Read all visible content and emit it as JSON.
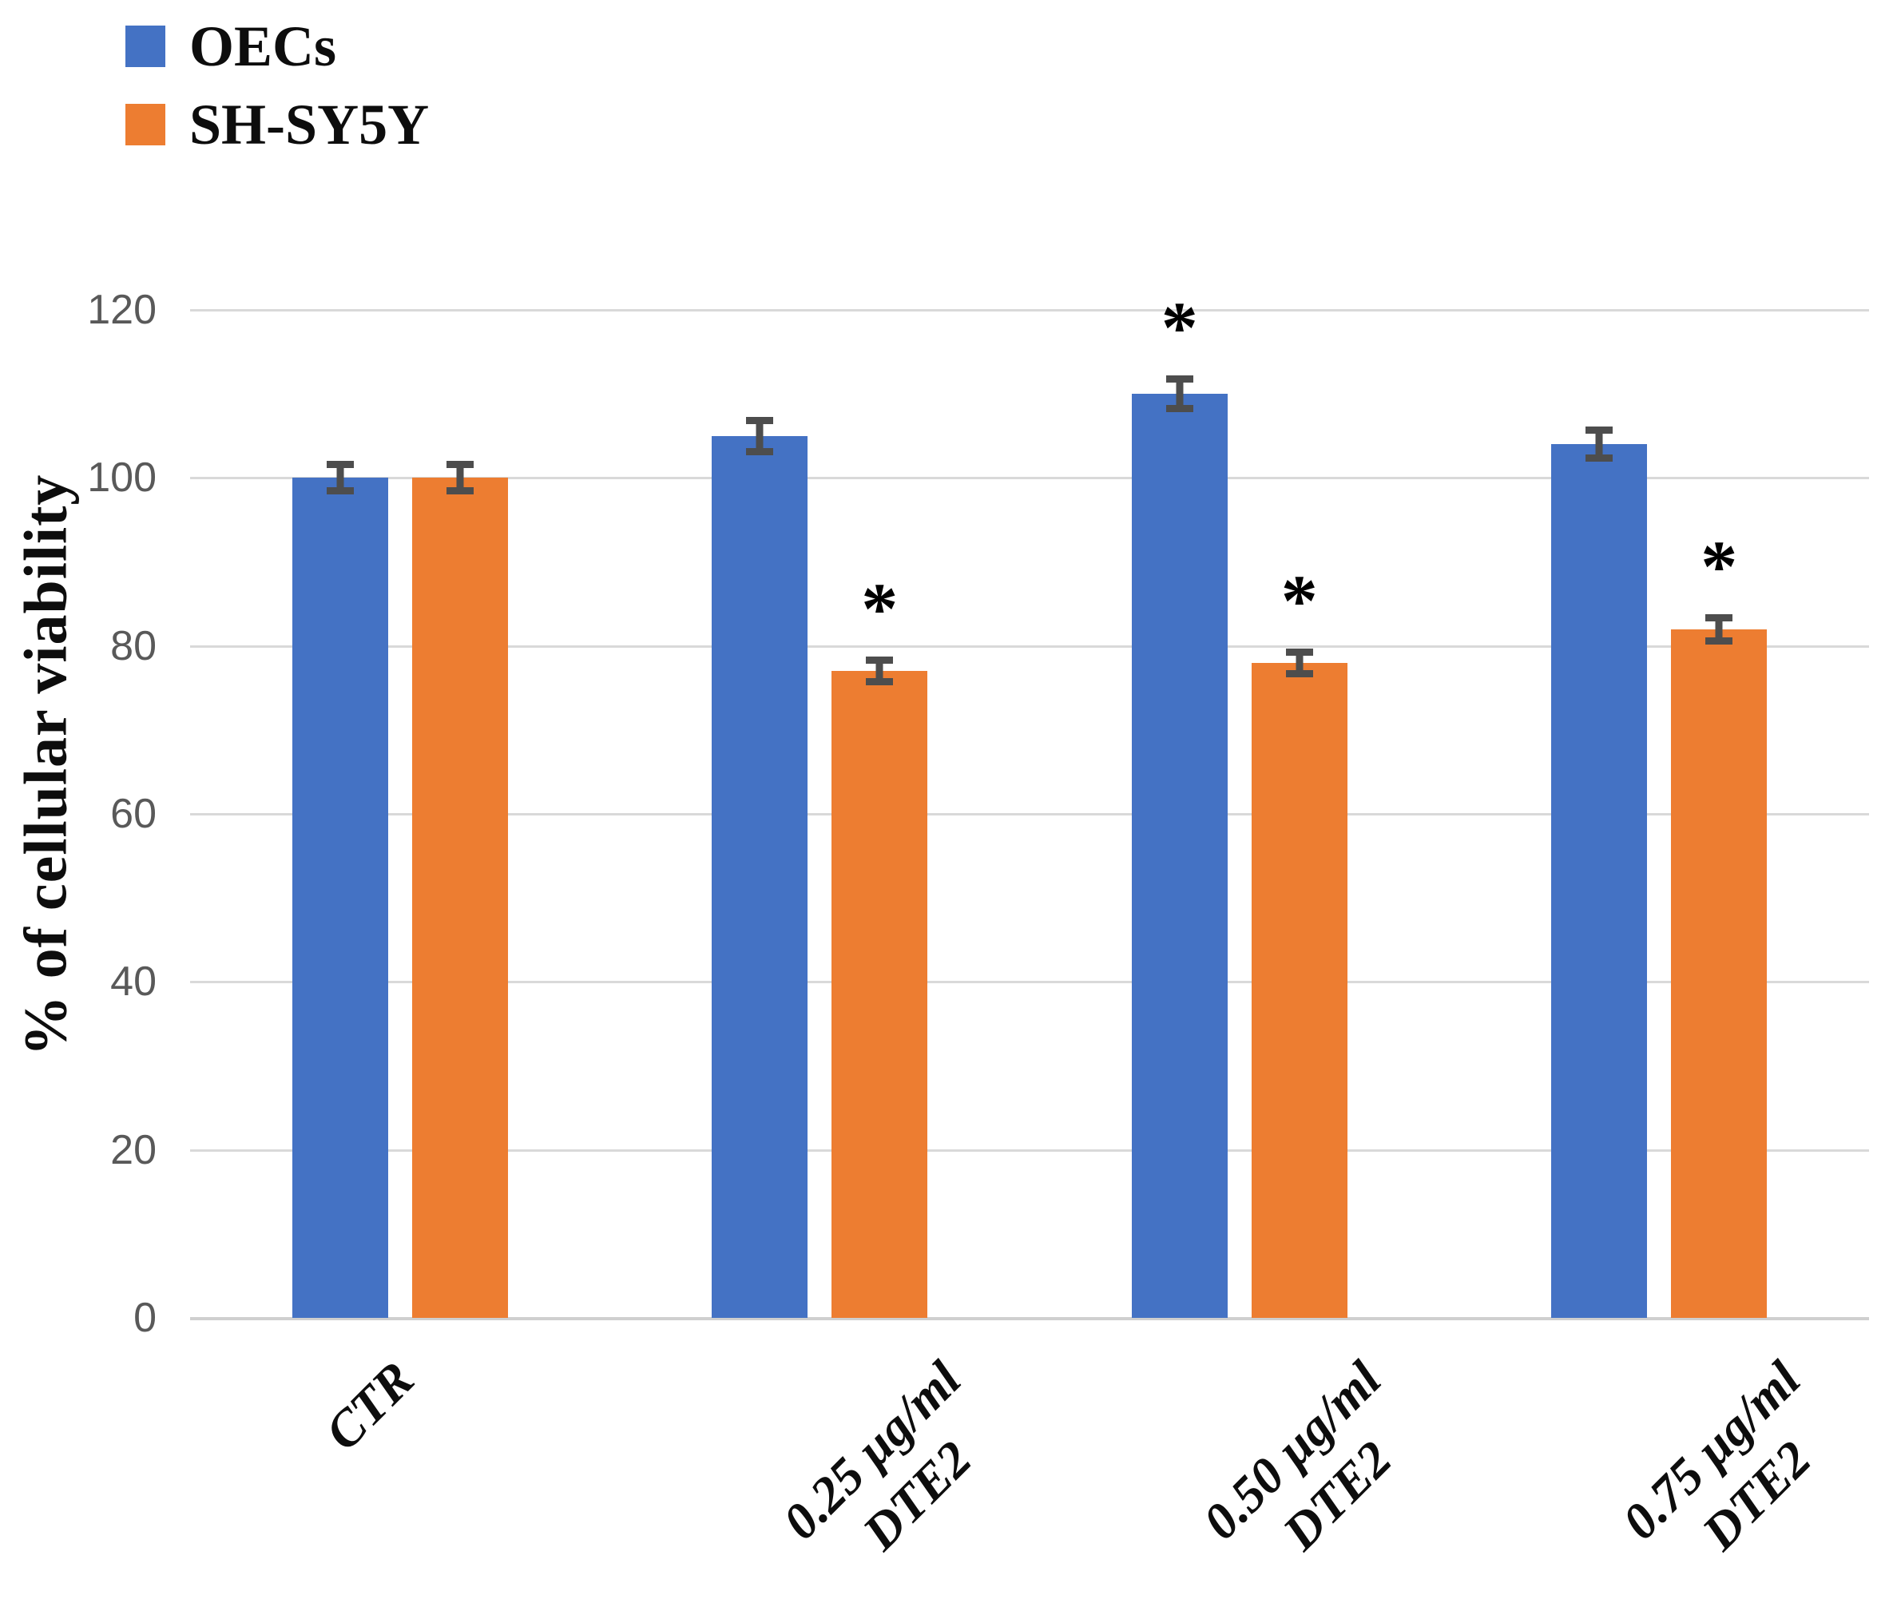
{
  "legend": {
    "items": [
      {
        "label": "OECs",
        "color": "#4472C4"
      },
      {
        "label": "SH-SY5Y",
        "color": "#ED7D31"
      }
    ]
  },
  "chart_data": {
    "type": "bar",
    "title": "",
    "xlabel": "",
    "ylabel": "% of  cellular viability",
    "ylim": [
      0,
      120
    ],
    "yticks": [
      0,
      20,
      40,
      60,
      80,
      100,
      120
    ],
    "grid": true,
    "legend_position": "top-left",
    "categories": [
      "CTR",
      "0.25 µg/ml\nDTE2",
      "0.50 µg/ml\nDTE2",
      "0.75 µg/ml\nDTE2"
    ],
    "series": [
      {
        "name": "OECs",
        "color": "#4472C4",
        "values": [
          100,
          105,
          110,
          104
        ],
        "errors": [
          2.0,
          2.3,
          2.2,
          2.1
        ],
        "significance": [
          "",
          "",
          "*",
          ""
        ]
      },
      {
        "name": "SH-SY5Y",
        "color": "#ED7D31",
        "values": [
          100,
          77,
          78,
          82
        ],
        "errors": [
          2.0,
          1.7,
          1.7,
          1.8
        ],
        "significance": [
          "",
          "*",
          "*",
          "*"
        ]
      }
    ],
    "significance_marker": "*",
    "error_bar_color": "#4d4d4d",
    "gridline_color": "#d9d9d9"
  }
}
